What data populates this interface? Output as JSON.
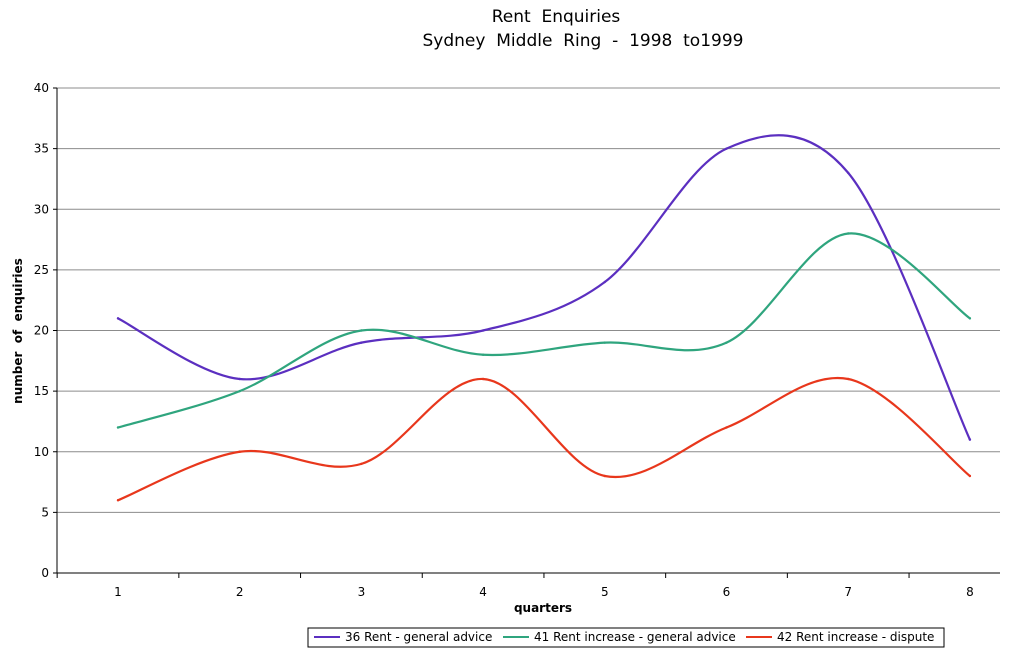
{
  "chart_data": {
    "type": "line",
    "title": "Rent  Enquiries",
    "subtitle": "Sydney  Middle  Ring  -  1998  to1999",
    "xlabel": "quarters",
    "ylabel": "number  of  enquiries",
    "categories": [
      "1",
      "2",
      "3",
      "4",
      "5",
      "6",
      "7",
      "8"
    ],
    "x": [
      1,
      2,
      3,
      4,
      5,
      6,
      7,
      8
    ],
    "ylim": [
      0,
      40
    ],
    "yticks": [
      0,
      5,
      10,
      15,
      20,
      25,
      30,
      35,
      40
    ],
    "grid": true,
    "smooth": true,
    "legend_position": "bottom-right",
    "series": [
      {
        "name": "36 Rent - general advice",
        "color": "#5b2fc0",
        "values": [
          21,
          16,
          19,
          20,
          24,
          35,
          33,
          11
        ]
      },
      {
        "name": "41 Rent increase - general advice",
        "color": "#2fa57e",
        "values": [
          12,
          15,
          20,
          18,
          19,
          19,
          28,
          21
        ]
      },
      {
        "name": "42 Rent increase - dispute",
        "color": "#e8371c",
        "values": [
          6,
          10,
          9,
          16,
          8,
          12,
          16,
          8
        ]
      }
    ]
  }
}
